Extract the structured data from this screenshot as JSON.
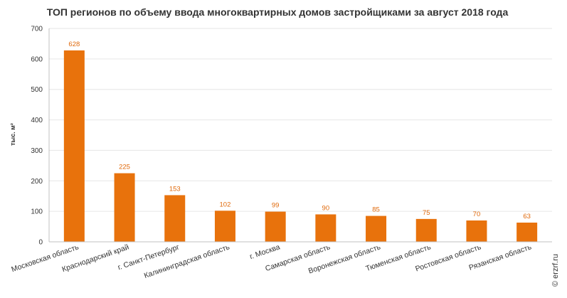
{
  "chart_data": {
    "type": "bar",
    "title": "ТОП регионов по объему ввода многоквартирных домов застройщиками за август 2018 года",
    "ylabel": "тыс. м²",
    "xlabel": "",
    "ylim": [
      0,
      700
    ],
    "yticks": [
      0,
      100,
      200,
      300,
      400,
      500,
      600,
      700
    ],
    "grid": true,
    "categories": [
      "Московская область",
      "Краснодарский край",
      "г. Санкт-Петербург",
      "Калининградская область",
      "г. Москва",
      "Самарская область",
      "Воронежская область",
      "Тюменская область",
      "Ростовская область",
      "Рязанская область"
    ],
    "values": [
      628,
      225,
      153,
      102,
      99,
      90,
      85,
      75,
      70,
      63
    ],
    "bar_color": "#e8720c",
    "label_color": "#e0690b"
  },
  "copyright": "© erzrf.ru"
}
